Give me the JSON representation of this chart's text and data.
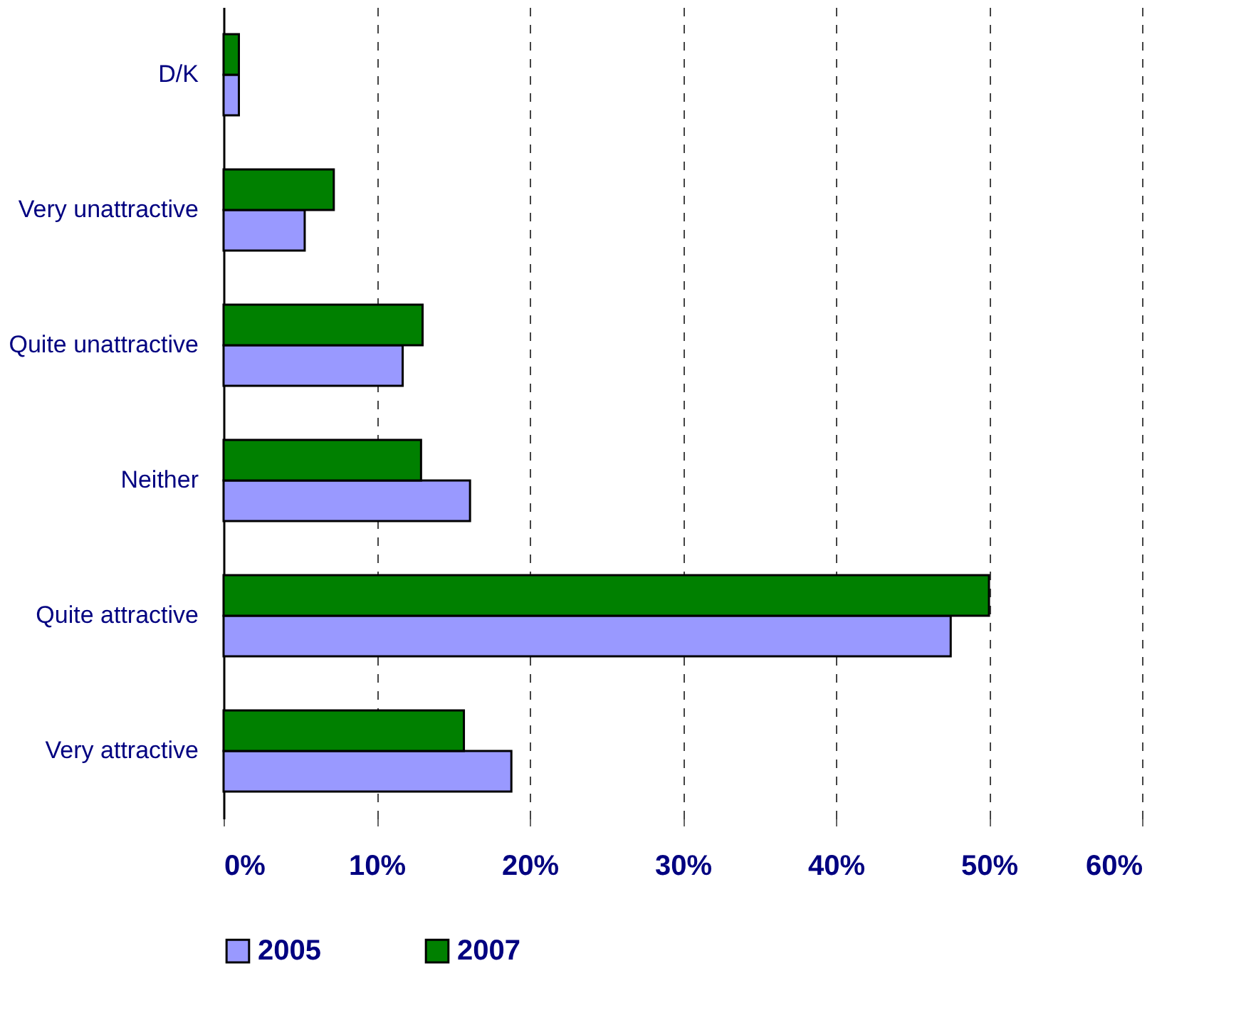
{
  "chart_data": {
    "type": "bar",
    "orientation": "horizontal",
    "categories": [
      "D/K",
      "Very unattractive",
      "Quite unattractive",
      "Neither",
      "Quite attractive",
      "Very attractive"
    ],
    "series": [
      {
        "name": "2005",
        "color": "#9999ff",
        "values": [
          1.0,
          5.3,
          11.7,
          16.1,
          47.5,
          18.8
        ]
      },
      {
        "name": "2007",
        "color": "#008000",
        "values": [
          1.0,
          7.2,
          13.0,
          12.9,
          50.0,
          15.7
        ]
      }
    ],
    "xlim": [
      0,
      60
    ],
    "xticks": [
      {
        "value": 0,
        "label": "0%"
      },
      {
        "value": 10,
        "label": "10%"
      },
      {
        "value": 20,
        "label": "20%"
      },
      {
        "value": 30,
        "label": "30%"
      },
      {
        "value": 40,
        "label": "40%"
      },
      {
        "value": 50,
        "label": "50%"
      },
      {
        "value": 60,
        "label": "60%"
      }
    ],
    "grid": "x",
    "legend": "bottom"
  }
}
